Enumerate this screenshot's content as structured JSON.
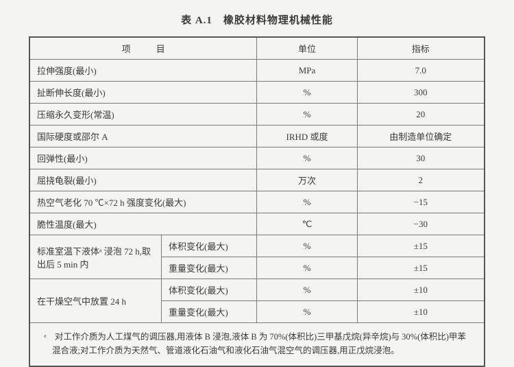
{
  "title": "表 A.1　橡胶材料物理机械性能",
  "headers": {
    "item": "项　目",
    "unit": "单位",
    "value": "指标"
  },
  "rows": {
    "r1": {
      "item": "拉伸强度(最小)",
      "unit": "MPa",
      "value": "7.0"
    },
    "r2": {
      "item": "扯断伸长度(最小)",
      "unit": "%",
      "value": "300"
    },
    "r3": {
      "item": "压缩永久变形(常温)",
      "unit": "%",
      "value": "20"
    },
    "r4": {
      "item": "国际硬度或邵尔 A",
      "unit": "IRHD 或度",
      "value": "由制造单位确定"
    },
    "r5": {
      "item": "回弹性(最小)",
      "unit": "%",
      "value": "30"
    },
    "r6": {
      "item": "屈挠龟裂(最小)",
      "unit": "万次",
      "value": "2"
    },
    "r7": {
      "item": "热空气老化 70 ℃×72 h 强度变化(最大)",
      "unit": "%",
      "value": "−15"
    },
    "r8": {
      "item": "脆性温度(最大)",
      "unit": "℃",
      "value": "−30"
    },
    "g1": {
      "group": "标准室温下液体ᵃ 浸泡 72 h,取出后 5 min 内",
      "a": {
        "item": "体积变化(最大)",
        "unit": "%",
        "value": "±15"
      },
      "b": {
        "item": "重量变化(最大)",
        "unit": "%",
        "value": "±15"
      }
    },
    "g2": {
      "group": "在干燥空气中放置 24 h",
      "a": {
        "item": "体积变化(最大)",
        "unit": "%",
        "value": "±10"
      },
      "b": {
        "item": "重量变化(最大)",
        "unit": "%",
        "value": "±10"
      }
    }
  },
  "footnote": "ᵃ　对工作介质为人工煤气的调压器,用液体 B 浸泡,液体 B 为 70%(体积比)三甲基戊烷(异辛烷)与 30%(体积比)甲苯混合液;对工作介质为天然气、管道液化石油气和液化石油气混空气的调压器,用正戊烷浸泡。",
  "colwidths": {
    "item": "29%",
    "sub": "21%",
    "unit": "22%",
    "value": "28%"
  },
  "colors": {
    "bg": "#f4f4f2",
    "text": "#3a3a3a",
    "border_outer": "#555",
    "border_inner": "#7a7a7a"
  }
}
